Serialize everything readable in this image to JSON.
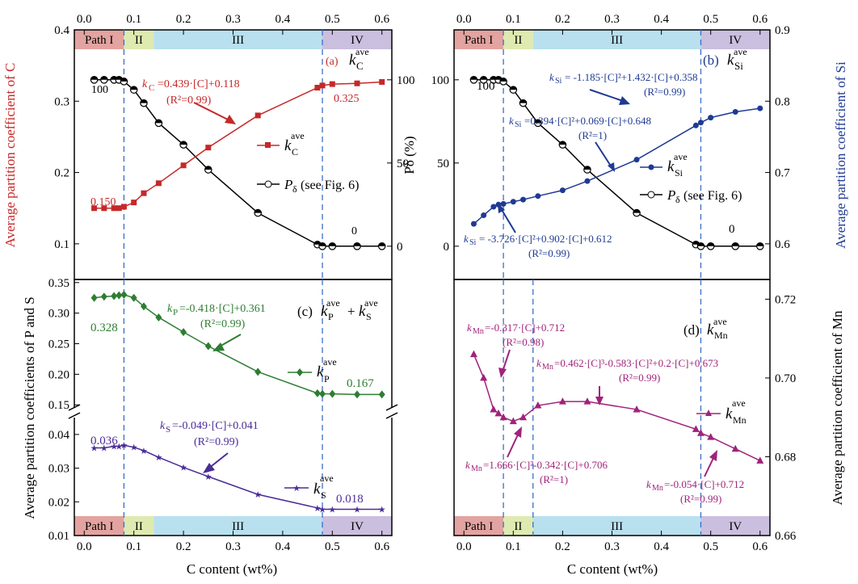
{
  "figure": {
    "x_axis_title": "C content (wt%)",
    "x_ticks": [
      "0.0",
      "0.1",
      "0.2",
      "0.3",
      "0.4",
      "0.5",
      "0.6"
    ],
    "x_tick_values": [
      0,
      0.1,
      0.2,
      0.3,
      0.4,
      0.5,
      0.6
    ],
    "paths": [
      "Path I",
      "II",
      "III",
      "IV"
    ],
    "path_bounds": [
      0,
      0.08,
      0.14,
      0.48,
      0.62
    ],
    "colors": {
      "path_fills": [
        "#e3a3a0",
        "#dfeab0",
        "#b8e0ee",
        "#cbbfe0"
      ],
      "red": "#c62828",
      "blue": "#1f3a93",
      "green": "#2e7d32",
      "purple": "#4b2c96",
      "magenta": "#a0237a",
      "black": "#000000",
      "dashed": "#3b6fc9"
    }
  },
  "panels": {
    "a": {
      "label": "(a)",
      "ylabel_left": "Average partition coefficient of C",
      "left_ticks": [
        "0.1",
        "0.2",
        "0.3",
        "0.4"
      ],
      "right_ticks": [
        "0",
        "50",
        "100"
      ],
      "series_label_k": "k",
      "series_label_k_sub": "C",
      "series_label_p": "P",
      "series_label_p_sub": "δ",
      "series_label_p_suffix": "(see Fig. 6)",
      "eq1": "k",
      "eq1_sub": "C",
      "eq1_rest": "=0.439·[C]+0.118",
      "eq1_r2": "(R²=0.99)",
      "val_left": "0.150",
      "val_right": "0.325",
      "p_100": "100",
      "p_0": "0"
    },
    "b": {
      "label": "(b)",
      "ylabel_left": "Pδ (%)",
      "ylabel_right": "Average partition coefficient of  Si",
      "left_ticks": [
        "0",
        "50",
        "100"
      ],
      "right_ticks": [
        "0.6",
        "0.7",
        "0.8",
        "0.9"
      ],
      "eq1_sub": "Si",
      "eq1_rest": "= -1.185·[C]²+1.432·[C]+0.358",
      "eq1_r2": "(R²=0.99)",
      "eq2_rest": "=0.394·[C]²+0.069·[C]+0.648",
      "eq2_r2": "(R²=1)",
      "eq3_rest": "= -3.726·[C]²+0.902·[C]+0.612",
      "eq3_r2": "(R²=0.99)",
      "p_100": "100",
      "p_0": "0"
    },
    "c": {
      "label": "(c)",
      "ylabel": "Average partition coefficients of  P and S",
      "upper_ticks": [
        "0.15",
        "0.20",
        "0.25",
        "0.30",
        "0.35"
      ],
      "lower_ticks": [
        "0.01",
        "0.02",
        "0.03",
        "0.04"
      ],
      "eqP_sub": "P",
      "eqP_rest": "=-0.418·[C]+0.361",
      "eqP_r2": "(R²=0.99)",
      "eqS_sub": "S",
      "eqS_rest": "=-0.049·[C]+0.041",
      "eqS_r2": "(R²=0.99)",
      "val_p_left": "0.328",
      "val_p_right": "0.167",
      "val_s_left": "0.036",
      "val_s_right": "0.018"
    },
    "d": {
      "label": "(d)",
      "ylabel": "Average partition coefficient of Mn",
      "ticks": [
        "0.66",
        "0.68",
        "0.70",
        "0.72"
      ],
      "eq1_sub": "Mn",
      "eq1_rest": "=-0.317·[C]+0.712",
      "eq1_r2": "(R²=0.98)",
      "eq2_rest": "=0.462·[C]³-0.583·[C]²+0.2·[C]+0.673",
      "eq2_r2": "(R²=0.99)",
      "eq3_rest": "=1.666·[C]²-0.342·[C]+0.706",
      "eq3_r2": "(R²=1)",
      "eq4_rest": "=-0.054·[C]+0.712",
      "eq4_r2": "(R²=0.99)"
    }
  },
  "chart_data": [
    {
      "type": "line",
      "panel": "a",
      "xlabel": "C content (wt%)",
      "ylabel": "Average partition coefficient of C",
      "xlim": [
        -0.02,
        0.62
      ],
      "ylim": [
        0.05,
        0.4
      ],
      "y2lim": [
        -20,
        130
      ],
      "series": [
        {
          "name": "k_C^ave",
          "axis": "left",
          "marker": "square",
          "color": "#c62828",
          "x": [
            0.02,
            0.04,
            0.06,
            0.07,
            0.08,
            0.1,
            0.12,
            0.15,
            0.2,
            0.25,
            0.35,
            0.47,
            0.48,
            0.5,
            0.55,
            0.6
          ],
          "y": [
            0.15,
            0.15,
            0.15,
            0.15,
            0.152,
            0.158,
            0.171,
            0.185,
            0.21,
            0.235,
            0.28,
            0.319,
            0.322,
            0.324,
            0.325,
            0.327
          ]
        },
        {
          "name": "Pδ (see Fig. 6)",
          "axis": "right",
          "marker": "half-circle",
          "color": "#000000",
          "x": [
            0.02,
            0.04,
            0.06,
            0.07,
            0.08,
            0.1,
            0.12,
            0.15,
            0.2,
            0.25,
            0.35,
            0.47,
            0.48,
            0.5,
            0.55,
            0.6
          ],
          "y": [
            100,
            100,
            100,
            100,
            99,
            94,
            86,
            74,
            61,
            46,
            20,
            1,
            0,
            0,
            0,
            0
          ]
        }
      ]
    },
    {
      "type": "line",
      "panel": "b",
      "xlabel": "C content (wt%)",
      "ylabel": "Pδ (%)",
      "y2label": "Average partition coefficient of  Si",
      "xlim": [
        -0.02,
        0.62
      ],
      "ylim": [
        -20,
        130
      ],
      "y2lim": [
        0.55,
        0.9
      ],
      "series": [
        {
          "name": "k_Si^ave",
          "axis": "right",
          "marker": "circle",
          "color": "#1f3a93",
          "x": [
            0.02,
            0.04,
            0.06,
            0.07,
            0.08,
            0.1,
            0.12,
            0.15,
            0.2,
            0.25,
            0.35,
            0.47,
            0.48,
            0.5,
            0.55,
            0.6
          ],
          "y": [
            0.628,
            0.64,
            0.652,
            0.655,
            0.656,
            0.659,
            0.662,
            0.667,
            0.675,
            0.688,
            0.718,
            0.766,
            0.77,
            0.777,
            0.785,
            0.79
          ]
        },
        {
          "name": "Pδ (see Fig. 6)",
          "axis": "left",
          "marker": "half-circle",
          "color": "#000000",
          "x": [
            0.02,
            0.04,
            0.06,
            0.07,
            0.08,
            0.1,
            0.12,
            0.15,
            0.2,
            0.25,
            0.35,
            0.47,
            0.48,
            0.5,
            0.55,
            0.6
          ],
          "y": [
            100,
            100,
            100,
            100,
            99,
            94,
            86,
            74,
            61,
            46,
            20,
            1,
            0,
            0,
            0,
            0
          ]
        }
      ]
    },
    {
      "type": "line",
      "panel": "c",
      "xlabel": "C content (wt%)",
      "ylabel": "Average partition coefficients of  P and S",
      "xlim": [
        -0.02,
        0.62
      ],
      "ylim_upper": [
        0.145,
        0.355
      ],
      "ylim_lower": [
        0.01,
        0.045
      ],
      "series": [
        {
          "name": "k_P^ave",
          "marker": "diamond",
          "color": "#2e7d32",
          "x": [
            0.02,
            0.04,
            0.06,
            0.07,
            0.08,
            0.1,
            0.12,
            0.15,
            0.2,
            0.25,
            0.35,
            0.47,
            0.48,
            0.5,
            0.55,
            0.6
          ],
          "y": [
            0.325,
            0.327,
            0.328,
            0.329,
            0.33,
            0.325,
            0.311,
            0.293,
            0.269,
            0.246,
            0.204,
            0.169,
            0.168,
            0.168,
            0.167,
            0.167
          ]
        },
        {
          "name": "k_S^ave",
          "marker": "star",
          "color": "#4b2c96",
          "x": [
            0.02,
            0.04,
            0.06,
            0.07,
            0.08,
            0.1,
            0.12,
            0.15,
            0.2,
            0.25,
            0.35,
            0.47,
            0.48,
            0.5,
            0.55,
            0.6
          ],
          "y": [
            0.036,
            0.036,
            0.0365,
            0.0365,
            0.0368,
            0.0362,
            0.0352,
            0.0332,
            0.0302,
            0.0275,
            0.0222,
            0.0182,
            0.0178,
            0.0178,
            0.0178,
            0.0178
          ]
        }
      ]
    },
    {
      "type": "line",
      "panel": "d",
      "xlabel": "C content (wt%)",
      "ylabel": "Average partition coefficient of Mn",
      "xlim": [
        -0.02,
        0.62
      ],
      "ylim": [
        0.66,
        0.725
      ],
      "series": [
        {
          "name": "k_Mn^ave",
          "marker": "triangle",
          "color": "#a0237a",
          "x": [
            0.02,
            0.04,
            0.06,
            0.07,
            0.08,
            0.1,
            0.12,
            0.15,
            0.2,
            0.25,
            0.35,
            0.47,
            0.48,
            0.5,
            0.55,
            0.6
          ],
          "y": [
            0.706,
            0.7,
            0.692,
            0.691,
            0.69,
            0.689,
            0.69,
            0.693,
            0.694,
            0.694,
            0.692,
            0.687,
            0.686,
            0.685,
            0.682,
            0.679
          ]
        }
      ]
    }
  ]
}
